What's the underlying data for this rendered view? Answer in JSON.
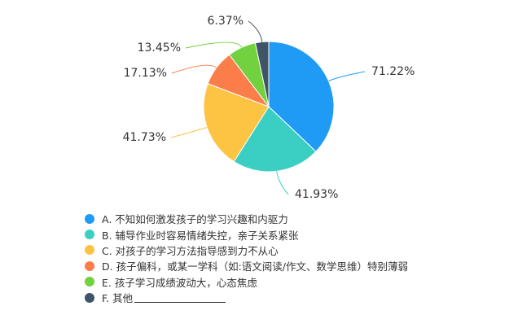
{
  "chart_data": {
    "type": "pie",
    "legend_position": "bottom-left",
    "slices": [
      {
        "label": "A. 不知如何激发孩子的学习兴趣和内驱力",
        "value": 71.22,
        "value_label": "71.22%",
        "color": "#1f9bf6"
      },
      {
        "label": "B. 辅导作业时容易情绪失控，亲子关系紧张",
        "value": 41.93,
        "value_label": "41.93%",
        "color": "#3bcfc4"
      },
      {
        "label": "C. 对孩子的学习方法指导感到力不从心",
        "value": 41.73,
        "value_label": "41.73%",
        "color": "#fdc343"
      },
      {
        "label": "D. 孩子偏科，或某一学科（如:语文阅读/作文、数学思维）特别薄弱",
        "value": 17.13,
        "value_label": "17.13%",
        "color": "#fb7d4a"
      },
      {
        "label": "E. 孩子学习成绩波动大，心态焦虑",
        "value": 13.45,
        "value_label": "13.45%",
        "color": "#71d13e"
      },
      {
        "label": "F. 其他",
        "value": 6.37,
        "value_label": "6.37%",
        "color": "#3f5466",
        "has_blank": true
      }
    ]
  }
}
